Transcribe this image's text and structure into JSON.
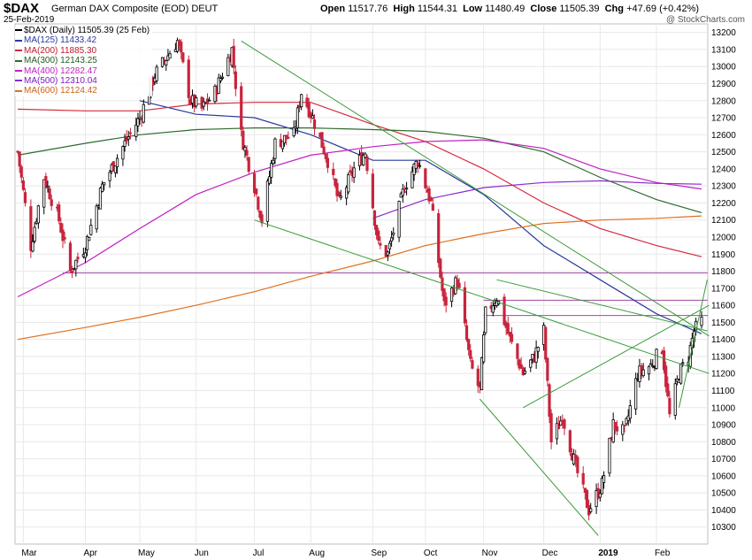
{
  "header": {
    "symbol": "$DAX",
    "name": "German DAX Composite (EOD)",
    "exchange": "DEUT",
    "date": "25-Feb-2019",
    "copyright": "@ StockCharts.com",
    "ohlc": {
      "open_label": "Open",
      "open": "11517.76",
      "high_label": "High",
      "high": "11544.31",
      "low_label": "Low",
      "low": "11480.49",
      "close_label": "Close",
      "close": "11505.39",
      "chg_label": "Chg",
      "chg": "+47.69 (+0.42%)"
    }
  },
  "legend": [
    {
      "label": "$DAX (Daily) 11505.39 (25 Feb)",
      "color": "#000000"
    },
    {
      "label": "MA(125) 11433.42",
      "color": "#2a3a9a"
    },
    {
      "label": "MA(200) 11885.30",
      "color": "#d62a3a"
    },
    {
      "label": "MA(300) 12143.25",
      "color": "#2e6b2e"
    },
    {
      "label": "MA(400) 12282.47",
      "color": "#c020c0"
    },
    {
      "label": "MA(500) 12310.04",
      "color": "#8a2ad0"
    },
    {
      "label": "MA(600) 12124.42",
      "color": "#e07020"
    }
  ],
  "chart_data": {
    "type": "candlestick",
    "ylim": [
      10200,
      13250
    ],
    "y_ticks": [
      10300,
      10400,
      10500,
      10600,
      10700,
      10800,
      10900,
      11000,
      11100,
      11200,
      11300,
      11400,
      11500,
      11600,
      11700,
      11800,
      11900,
      12000,
      12100,
      12200,
      12300,
      12400,
      12500,
      12600,
      12700,
      12800,
      12900,
      13000,
      13100,
      13200
    ],
    "x_range": [
      "2018-02-26",
      "2019-02-25"
    ],
    "x_ticks": [
      {
        "date": "2018-03-01",
        "label": "Mar"
      },
      {
        "date": "2018-04-03",
        "label": "Apr"
      },
      {
        "date": "2018-05-02",
        "label": "May"
      },
      {
        "date": "2018-06-01",
        "label": "Jun"
      },
      {
        "date": "2018-07-02",
        "label": "Jul"
      },
      {
        "date": "2018-08-01",
        "label": "Aug"
      },
      {
        "date": "2018-09-03",
        "label": "Sep"
      },
      {
        "date": "2018-10-01",
        "label": "Oct"
      },
      {
        "date": "2018-11-01",
        "label": "Nov"
      },
      {
        "date": "2018-12-03",
        "label": "Dec"
      },
      {
        "date": "2019-01-02",
        "label": "2019"
      },
      {
        "date": "2019-02-01",
        "label": "Feb"
      }
    ],
    "price_path": [
      [
        "2018-02-26",
        12500
      ],
      [
        "2018-03-05",
        11950
      ],
      [
        "2018-03-12",
        12350
      ],
      [
        "2018-03-20",
        12100
      ],
      [
        "2018-03-26",
        11800
      ],
      [
        "2018-04-03",
        11950
      ],
      [
        "2018-04-12",
        12300
      ],
      [
        "2018-04-24",
        12550
      ],
      [
        "2018-05-02",
        12700
      ],
      [
        "2018-05-10",
        12950
      ],
      [
        "2018-05-22",
        13150
      ],
      [
        "2018-05-29",
        12800
      ],
      [
        "2018-06-04",
        12750
      ],
      [
        "2018-06-11",
        12850
      ],
      [
        "2018-06-20",
        13100
      ],
      [
        "2018-06-25",
        12600
      ],
      [
        "2018-07-02",
        12300
      ],
      [
        "2018-07-06",
        12100
      ],
      [
        "2018-07-13",
        12550
      ],
      [
        "2018-07-23",
        12600
      ],
      [
        "2018-07-27",
        12850
      ],
      [
        "2018-08-02",
        12700
      ],
      [
        "2018-08-10",
        12450
      ],
      [
        "2018-08-16",
        12200
      ],
      [
        "2018-08-24",
        12400
      ],
      [
        "2018-08-30",
        12500
      ],
      [
        "2018-09-06",
        11950
      ],
      [
        "2018-09-11",
        11900
      ],
      [
        "2018-09-20",
        12300
      ],
      [
        "2018-09-27",
        12450
      ],
      [
        "2018-10-04",
        12200
      ],
      [
        "2018-10-11",
        11600
      ],
      [
        "2018-10-18",
        11750
      ],
      [
        "2018-10-25",
        11250
      ],
      [
        "2018-10-30",
        11100
      ],
      [
        "2018-11-02",
        11550
      ],
      [
        "2018-11-08",
        11650
      ],
      [
        "2018-11-15",
        11400
      ],
      [
        "2018-11-22",
        11200
      ],
      [
        "2018-11-28",
        11300
      ],
      [
        "2018-12-03",
        11450
      ],
      [
        "2018-12-07",
        10800
      ],
      [
        "2018-12-13",
        10950
      ],
      [
        "2018-12-20",
        10650
      ],
      [
        "2018-12-27",
        10400
      ],
      [
        "2019-01-03",
        10550
      ],
      [
        "2019-01-09",
        10900
      ],
      [
        "2019-01-15",
        10850
      ],
      [
        "2019-01-22",
        11200
      ],
      [
        "2019-01-29",
        11250
      ],
      [
        "2019-02-04",
        11350
      ],
      [
        "2019-02-08",
        10950
      ],
      [
        "2019-02-13",
        11200
      ],
      [
        "2019-02-18",
        11300
      ],
      [
        "2019-02-21",
        11450
      ],
      [
        "2019-02-25",
        11505
      ]
    ],
    "series": [
      {
        "name": "MA(125)",
        "color": "#2a3a9a",
        "points": [
          [
            "2018-05-02",
            12800
          ],
          [
            "2018-06-01",
            12720
          ],
          [
            "2018-07-02",
            12700
          ],
          [
            "2018-08-01",
            12600
          ],
          [
            "2018-09-03",
            12450
          ],
          [
            "2018-10-01",
            12450
          ],
          [
            "2018-11-01",
            12250
          ],
          [
            "2018-12-03",
            11950
          ],
          [
            "2019-01-02",
            11750
          ],
          [
            "2019-02-01",
            11550
          ],
          [
            "2019-02-25",
            11433
          ]
        ]
      },
      {
        "name": "MA(200)",
        "color": "#d62a3a",
        "points": [
          [
            "2018-02-26",
            12750
          ],
          [
            "2018-04-03",
            12740
          ],
          [
            "2018-05-02",
            12740
          ],
          [
            "2018-06-01",
            12780
          ],
          [
            "2018-07-02",
            12790
          ],
          [
            "2018-08-01",
            12790
          ],
          [
            "2018-09-03",
            12660
          ],
          [
            "2018-10-01",
            12560
          ],
          [
            "2018-11-01",
            12400
          ],
          [
            "2018-12-03",
            12200
          ],
          [
            "2019-01-02",
            12050
          ],
          [
            "2019-02-01",
            11950
          ],
          [
            "2019-02-25",
            11885
          ]
        ]
      },
      {
        "name": "MA(300)",
        "color": "#2e6b2e",
        "points": [
          [
            "2018-02-26",
            12480
          ],
          [
            "2018-04-03",
            12550
          ],
          [
            "2018-05-02",
            12600
          ],
          [
            "2018-06-01",
            12630
          ],
          [
            "2018-07-02",
            12640
          ],
          [
            "2018-08-01",
            12640
          ],
          [
            "2018-09-03",
            12630
          ],
          [
            "2018-10-01",
            12620
          ],
          [
            "2018-11-01",
            12580
          ],
          [
            "2018-12-03",
            12500
          ],
          [
            "2019-01-02",
            12350
          ],
          [
            "2019-02-01",
            12220
          ],
          [
            "2019-02-25",
            12143
          ]
        ]
      },
      {
        "name": "MA(400)",
        "color": "#c020c0",
        "points": [
          [
            "2018-02-26",
            11650
          ],
          [
            "2018-04-03",
            11850
          ],
          [
            "2018-05-02",
            12050
          ],
          [
            "2018-06-01",
            12250
          ],
          [
            "2018-07-02",
            12380
          ],
          [
            "2018-08-01",
            12480
          ],
          [
            "2018-09-03",
            12530
          ],
          [
            "2018-10-01",
            12560
          ],
          [
            "2018-11-01",
            12570
          ],
          [
            "2018-12-03",
            12520
          ],
          [
            "2019-01-02",
            12400
          ],
          [
            "2019-02-01",
            12320
          ],
          [
            "2019-02-25",
            12282
          ]
        ]
      },
      {
        "name": "MA(500)",
        "color": "#8a2ad0",
        "points": [
          [
            "2018-09-03",
            12110
          ],
          [
            "2018-10-01",
            12220
          ],
          [
            "2018-11-01",
            12290
          ],
          [
            "2018-12-03",
            12320
          ],
          [
            "2019-01-02",
            12330
          ],
          [
            "2019-02-01",
            12315
          ],
          [
            "2019-02-25",
            12310
          ]
        ]
      },
      {
        "name": "MA(600)",
        "color": "#e07020",
        "points": [
          [
            "2018-02-26",
            11400
          ],
          [
            "2018-04-03",
            11470
          ],
          [
            "2018-05-02",
            11530
          ],
          [
            "2018-06-01",
            11600
          ],
          [
            "2018-07-02",
            11680
          ],
          [
            "2018-08-01",
            11770
          ],
          [
            "2018-09-03",
            11860
          ],
          [
            "2018-10-01",
            11950
          ],
          [
            "2018-11-01",
            12020
          ],
          [
            "2018-12-03",
            12080
          ],
          [
            "2019-01-02",
            12100
          ],
          [
            "2019-02-01",
            12110
          ],
          [
            "2019-02-25",
            12124
          ]
        ]
      }
    ],
    "trendlines": [
      {
        "from": [
          "2018-06-25",
          13150
        ],
        "to": [
          "2019-03-01",
          11420
        ],
        "color": "#3a9a3a"
      },
      {
        "from": [
          "2018-07-02",
          12100
        ],
        "to": [
          "2019-03-01",
          11200
        ],
        "color": "#3a9a3a"
      },
      {
        "from": [
          "2018-10-30",
          11050
        ],
        "to": [
          "2019-01-01",
          10250
        ],
        "color": "#3a9a3a"
      },
      {
        "from": [
          "2018-11-22",
          11000
        ],
        "to": [
          "2019-03-01",
          11600
        ],
        "color": "#3a9a3a"
      },
      {
        "from": [
          "2019-02-13",
          11000
        ],
        "to": [
          "2019-02-28",
          11750
        ],
        "color": "#3a9a3a"
      },
      {
        "from": [
          "2018-11-08",
          11750
        ],
        "to": [
          "2019-02-28",
          11450
        ],
        "color": "#3a9a3a"
      }
    ],
    "horizontal_lines": [
      {
        "value": 11790,
        "color": "#a04aa0",
        "from": "2018-03-22"
      },
      {
        "value": 11630,
        "color": "#a04aa0",
        "from": "2018-11-01"
      },
      {
        "value": 11540,
        "color": "#a04aa0",
        "from": "2018-11-01"
      }
    ],
    "grid": true,
    "up_color": "#000000",
    "down_color": "#c8243c"
  }
}
